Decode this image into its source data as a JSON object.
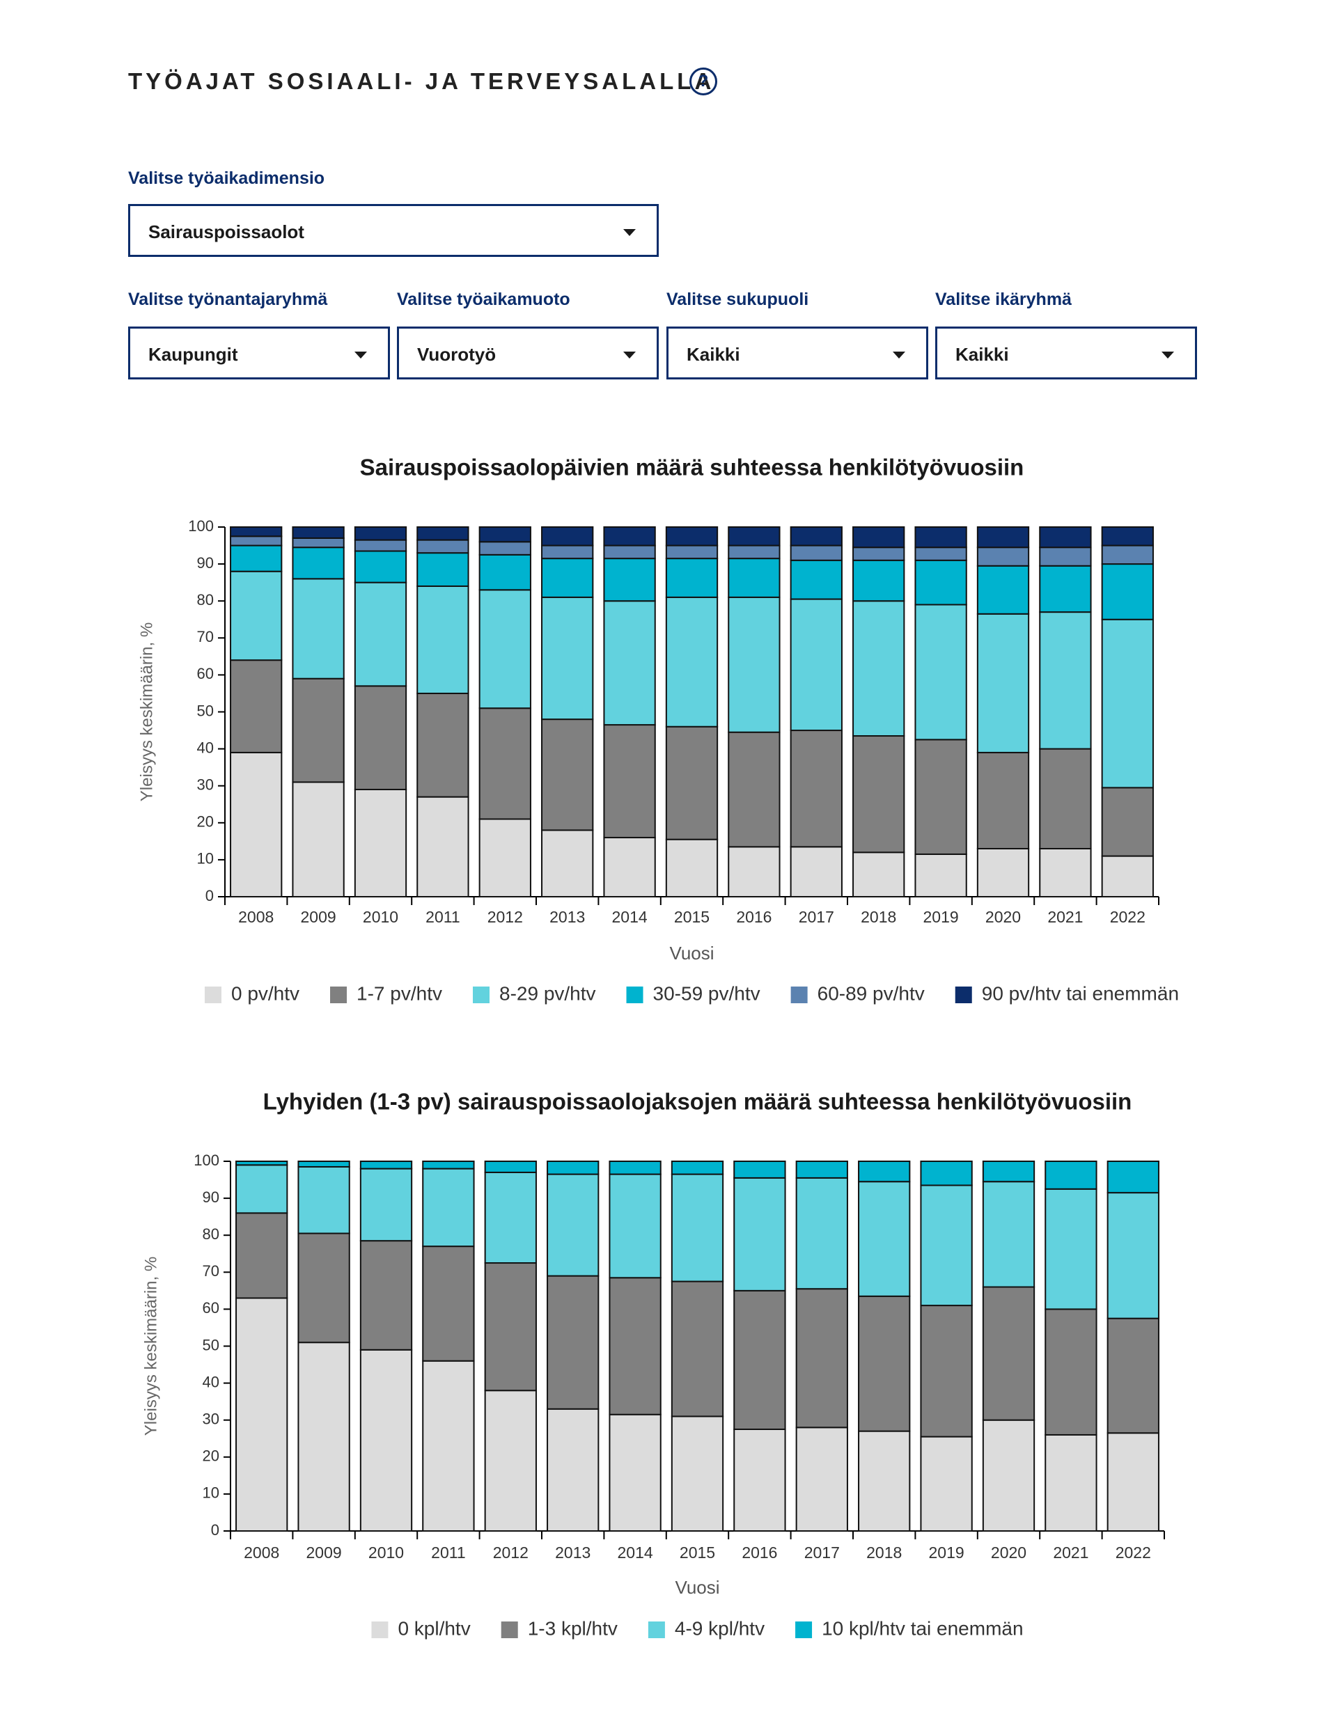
{
  "header": {
    "title": "TYÖAJAT SOSIAALI- JA TERVEYSALALLA",
    "help_icon": "?"
  },
  "controls": [
    {
      "label": "Valitse työaikadimensio",
      "value": "Sairauspoissaolot"
    },
    {
      "label": "Valitse työnantajaryhmä",
      "value": "Kaupungit"
    },
    {
      "label": "Valitse työaikamuoto",
      "value": "Vuorotyö"
    },
    {
      "label": "Valitse sukupuoli",
      "value": "Kaikki"
    },
    {
      "label": "Valitse ikäryhmä",
      "value": "Kaikki"
    }
  ],
  "chart_data": [
    {
      "type": "stacked_bar",
      "title": "Sairauspoissaolopäivien määrä suhteessa henkilötyövuosiin",
      "x_label": "Vuosi",
      "y_label": "Yleisyys keskimäärin, %",
      "categories": [
        "2008",
        "2009",
        "2010",
        "2011",
        "2012",
        "2013",
        "2014",
        "2015",
        "2016",
        "2017",
        "2018",
        "2019",
        "2020",
        "2021",
        "2022"
      ],
      "ylim": [
        0,
        100
      ],
      "yticks": [
        0,
        10,
        20,
        30,
        40,
        50,
        60,
        70,
        80,
        90,
        100
      ],
      "series": [
        {
          "name": "0 pv/htv",
          "color": "#dcdcdc",
          "values": [
            39,
            31,
            29,
            27,
            21,
            18,
            16,
            15.5,
            13.5,
            13.5,
            12,
            11.5,
            13,
            13,
            11
          ]
        },
        {
          "name": "1-7 pv/htv",
          "color": "#808080",
          "values": [
            25,
            28,
            28,
            28,
            30,
            30,
            30.5,
            30.5,
            31,
            31.5,
            31.5,
            31,
            26,
            27,
            18.5
          ]
        },
        {
          "name": "8-29 pv/htv",
          "color": "#62d2de",
          "values": [
            24,
            27,
            28,
            29,
            32,
            33,
            33.5,
            35,
            36.5,
            35.5,
            36.5,
            36.5,
            37.5,
            37,
            45.5
          ]
        },
        {
          "name": "30-59 pv/htv",
          "color": "#00b3cf",
          "values": [
            7,
            8.5,
            8.5,
            9,
            9.5,
            10.5,
            11.5,
            10.5,
            10.5,
            10.5,
            11,
            12,
            13,
            12.5,
            15
          ]
        },
        {
          "name": "60-89 pv/htv",
          "color": "#5b82b0",
          "values": [
            2.5,
            2.5,
            3,
            3.5,
            3.5,
            3.5,
            3.5,
            3.5,
            3.5,
            4,
            3.5,
            3.5,
            5,
            5,
            5
          ]
        },
        {
          "name": "90 pv/htv tai enemmän",
          "color": "#0c2d6b",
          "values": [
            2.5,
            3,
            3.5,
            3.5,
            4,
            5,
            5,
            5,
            5,
            5,
            5.5,
            5.5,
            5.5,
            5.5,
            5
          ]
        }
      ]
    },
    {
      "type": "stacked_bar",
      "title": "Lyhyiden (1-3 pv) sairauspoissaolojaksojen määrä suhteessa henkilötyövuosiin",
      "x_label": "Vuosi",
      "y_label": "Yleisyys keskimäärin, %",
      "categories": [
        "2008",
        "2009",
        "2010",
        "2011",
        "2012",
        "2013",
        "2014",
        "2015",
        "2016",
        "2017",
        "2018",
        "2019",
        "2020",
        "2021",
        "2022"
      ],
      "ylim": [
        0,
        100
      ],
      "yticks": [
        0,
        10,
        20,
        30,
        40,
        50,
        60,
        70,
        80,
        90,
        100
      ],
      "series": [
        {
          "name": "0 kpl/htv",
          "color": "#dcdcdc",
          "values": [
            63,
            51,
            49,
            46,
            38,
            33,
            31.5,
            31,
            27.5,
            28,
            27,
            25.5,
            30,
            26,
            26.5
          ]
        },
        {
          "name": "1-3 kpl/htv",
          "color": "#808080",
          "values": [
            23,
            29.5,
            29.5,
            31,
            34.5,
            36,
            37,
            36.5,
            37.5,
            37.5,
            36.5,
            35.5,
            36,
            34,
            31
          ]
        },
        {
          "name": "4-9 kpl/htv",
          "color": "#62d2de",
          "values": [
            13,
            18,
            19.5,
            21,
            24.5,
            27.5,
            28,
            29,
            30.5,
            30,
            31,
            32.5,
            28.5,
            32.5,
            34
          ]
        },
        {
          "name": "10 kpl/htv tai enemmän",
          "color": "#00b3cf",
          "values": [
            1,
            1.5,
            2,
            2,
            3,
            3.5,
            3.5,
            3.5,
            4.5,
            4.5,
            5.5,
            6.5,
            5.5,
            7.5,
            8.5
          ]
        }
      ]
    }
  ]
}
